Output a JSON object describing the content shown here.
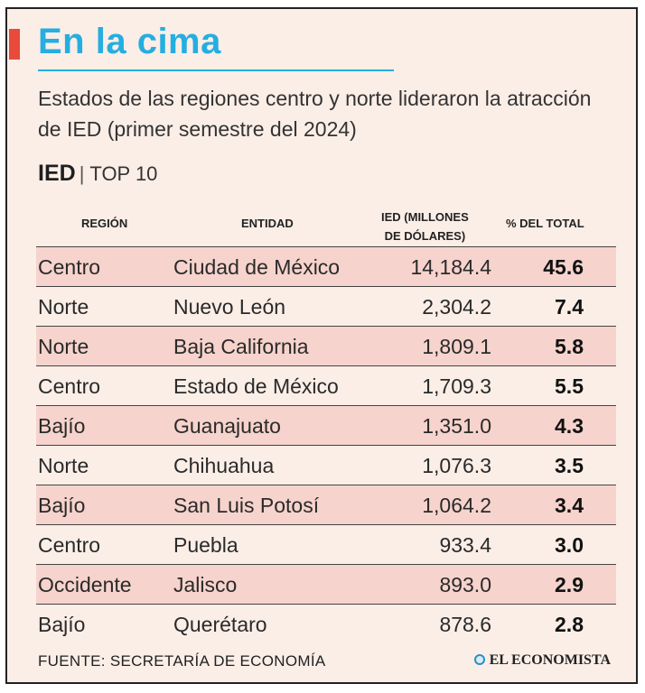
{
  "header": {
    "title": "En la cima",
    "subtitle": "Estados de las regiones centro y norte lideraron la atracción de IED (primer semestre del 2024)"
  },
  "table_label": {
    "ied": "IED",
    "separator": "|",
    "top": "TOP 10"
  },
  "columns": {
    "region": "Región",
    "entity": "Entidad",
    "ied_line1": "IED (millones",
    "ied_line2": "de dólares)",
    "pct": "% del total"
  },
  "rows": [
    {
      "region": "Centro",
      "entity": "Ciudad de México",
      "ied": "14,184.4",
      "pct": "45.6",
      "shaded": true
    },
    {
      "region": "Norte",
      "entity": "Nuevo León",
      "ied": "2,304.2",
      "pct": "7.4",
      "shaded": false
    },
    {
      "region": "Norte",
      "entity": "Baja California",
      "ied": "1,809.1",
      "pct": "5.8",
      "shaded": true
    },
    {
      "region": "Centro",
      "entity": "Estado de México",
      "ied": "1,709.3",
      "pct": "5.5",
      "shaded": false
    },
    {
      "region": "Bajío",
      "entity": "Guanajuato",
      "ied": "1,351.0",
      "pct": "4.3",
      "shaded": true
    },
    {
      "region": "Norte",
      "entity": "Chihuahua",
      "ied": "1,076.3",
      "pct": "3.5",
      "shaded": false
    },
    {
      "region": "Bajío",
      "entity": "San Luis Potosí",
      "ied": "1,064.2",
      "pct": "3.4",
      "shaded": true
    },
    {
      "region": "Centro",
      "entity": "Puebla",
      "ied": "933.4",
      "pct": "3.0",
      "shaded": false
    },
    {
      "region": "Occidente",
      "entity": "Jalisco",
      "ied": "893.0",
      "pct": "2.9",
      "shaded": true
    },
    {
      "region": "Bajío",
      "entity": "Querétaro",
      "ied": "878.6",
      "pct": "2.8",
      "shaded": false
    }
  ],
  "footer": {
    "source": "FUENTE: SECRETARÍA DE ECONOMÍA",
    "brand": "EL ECONOMISTA"
  },
  "colors": {
    "title": "#25aee0",
    "accent": "#e84a3c",
    "background": "#fbeee7",
    "row_shade": "#f6d3cc"
  }
}
